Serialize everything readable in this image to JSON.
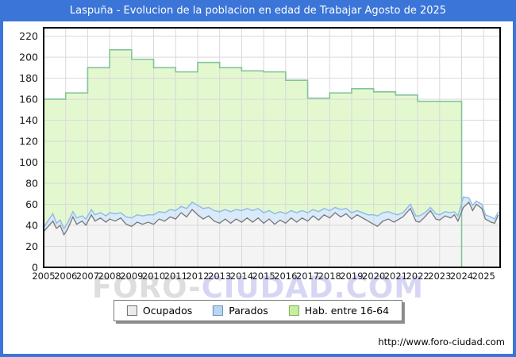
{
  "title_bar": {
    "title": "Laspuña - Evolucion de la poblacion en edad de Trabajar Agosto de 2025",
    "bg_color": "#3a75d7"
  },
  "watermark": {
    "part1": "FORO-",
    "part2": "CIUDAD.COM"
  },
  "footer": {
    "url": "http://www.foro-ciudad.com"
  },
  "legend": {
    "items": [
      {
        "label": "Ocupados",
        "fill": "#ececec",
        "border": "#6e6e6e"
      },
      {
        "label": "Parados",
        "fill": "#b9d7f2",
        "border": "#6d8fb4"
      },
      {
        "label": "Hab. entre 16-64",
        "fill": "#c6f19c",
        "border": "#82a868"
      }
    ]
  },
  "chart_data": {
    "type": "area",
    "title": "Laspuña - Evolucion de la poblacion en edad de Trabajar Agosto de 2025",
    "xlabel": "",
    "ylabel": "",
    "xlim": [
      2005,
      2025.75
    ],
    "ylim": [
      0,
      228
    ],
    "y_ticks": [
      0,
      20,
      40,
      60,
      80,
      100,
      120,
      140,
      160,
      180,
      200,
      220
    ],
    "x_ticks": [
      2005,
      2006,
      2007,
      2008,
      2009,
      2010,
      2011,
      2012,
      2013,
      2014,
      2015,
      2016,
      2017,
      2018,
      2019,
      2020,
      2021,
      2022,
      2023,
      2024,
      2025
    ],
    "grid": true,
    "legend_position": "bottom",
    "colors": {
      "grid": "#d9d9d9",
      "plot_border": "#000000",
      "hab_line": "#82c49a",
      "hab_fill": "#e4f8cf",
      "ocupados_line": "#777777",
      "ocupados_fill": "#f4f4f4",
      "parados_line": "#93bce8",
      "parados_fill": "#d9eafa"
    },
    "series": [
      {
        "name": "Hab. entre 16-64",
        "style": "annual-step",
        "years": [
          2005,
          2006,
          2007,
          2008,
          2009,
          2010,
          2011,
          2012,
          2013,
          2014,
          2015,
          2016,
          2017,
          2018,
          2019,
          2020,
          2021,
          2022,
          2023
        ],
        "values": [
          160,
          166,
          190,
          207,
          198,
          190,
          186,
          195,
          190,
          187,
          186,
          178,
          161,
          166,
          170,
          167,
          164,
          158,
          158
        ],
        "ends_at": 2024.0
      },
      {
        "name": "Ocupados",
        "style": "monthly",
        "stacked_on": null,
        "x": [
          2005.0,
          2005.25,
          2005.42,
          2005.58,
          2005.75,
          2005.92,
          2006.08,
          2006.33,
          2006.5,
          2006.75,
          2006.92,
          2007.17,
          2007.33,
          2007.58,
          2007.83,
          2008.0,
          2008.25,
          2008.5,
          2008.75,
          2009.0,
          2009.25,
          2009.5,
          2009.75,
          2010.0,
          2010.25,
          2010.5,
          2010.75,
          2011.0,
          2011.25,
          2011.5,
          2011.75,
          2012.0,
          2012.25,
          2012.5,
          2012.75,
          2013.0,
          2013.25,
          2013.5,
          2013.75,
          2014.0,
          2014.25,
          2014.5,
          2014.75,
          2015.0,
          2015.25,
          2015.5,
          2015.75,
          2016.0,
          2016.25,
          2016.5,
          2016.75,
          2017.0,
          2017.25,
          2017.5,
          2017.75,
          2018.0,
          2018.25,
          2018.5,
          2018.75,
          2019.0,
          2019.25,
          2019.5,
          2019.75,
          2020.0,
          2020.17,
          2020.42,
          2020.67,
          2020.92,
          2021.08,
          2021.33,
          2021.67,
          2021.92,
          2022.08,
          2022.33,
          2022.58,
          2022.83,
          2023.0,
          2023.25,
          2023.5,
          2023.67,
          2023.83,
          2024.08,
          2024.33,
          2024.5,
          2024.67,
          2024.92,
          2025.08,
          2025.33,
          2025.5,
          2025.67
        ],
        "values": [
          34,
          40,
          44,
          37,
          40,
          31,
          36,
          48,
          41,
          44,
          40,
          50,
          44,
          47,
          43,
          46,
          44,
          47,
          41,
          39,
          43,
          41,
          43,
          41,
          46,
          44,
          48,
          46,
          52,
          48,
          55,
          50,
          46,
          49,
          44,
          42,
          46,
          42,
          46,
          43,
          47,
          43,
          47,
          42,
          46,
          41,
          45,
          42,
          47,
          43,
          47,
          44,
          49,
          45,
          50,
          47,
          52,
          48,
          51,
          46,
          50,
          47,
          44,
          41,
          39,
          44,
          46,
          43,
          45,
          48,
          56,
          44,
          43,
          48,
          54,
          46,
          45,
          49,
          47,
          50,
          44,
          57,
          62,
          54,
          60,
          56,
          46,
          43,
          42,
          50
        ]
      },
      {
        "name": "Parados",
        "style": "monthly",
        "stacked_on": "Ocupados",
        "x": [
          2005.0,
          2005.25,
          2005.42,
          2005.58,
          2005.75,
          2005.92,
          2006.08,
          2006.33,
          2006.5,
          2006.75,
          2006.92,
          2007.17,
          2007.33,
          2007.58,
          2007.83,
          2008.0,
          2008.25,
          2008.5,
          2008.75,
          2009.0,
          2009.25,
          2009.5,
          2009.75,
          2010.0,
          2010.25,
          2010.5,
          2010.75,
          2011.0,
          2011.25,
          2011.5,
          2011.75,
          2012.0,
          2012.25,
          2012.5,
          2012.75,
          2013.0,
          2013.25,
          2013.5,
          2013.75,
          2014.0,
          2014.25,
          2014.5,
          2014.75,
          2015.0,
          2015.25,
          2015.5,
          2015.75,
          2016.0,
          2016.25,
          2016.5,
          2016.75,
          2017.0,
          2017.25,
          2017.5,
          2017.75,
          2018.0,
          2018.25,
          2018.5,
          2018.75,
          2019.0,
          2019.25,
          2019.5,
          2019.75,
          2020.0,
          2020.17,
          2020.42,
          2020.67,
          2020.92,
          2021.08,
          2021.33,
          2021.67,
          2021.92,
          2022.08,
          2022.33,
          2022.58,
          2022.83,
          2023.0,
          2023.25,
          2023.5,
          2023.67,
          2023.83,
          2024.08,
          2024.33,
          2024.5,
          2024.67,
          2024.92,
          2025.08,
          2025.33,
          2025.5,
          2025.67
        ],
        "values": [
          4,
          6,
          7,
          5,
          5,
          6,
          6,
          5,
          6,
          5,
          6,
          5,
          6,
          5,
          6,
          6,
          7,
          5,
          7,
          8,
          7,
          8,
          7,
          9,
          7,
          8,
          7,
          8,
          6,
          8,
          7,
          9,
          10,
          8,
          10,
          11,
          9,
          11,
          9,
          11,
          9,
          11,
          9,
          10,
          8,
          10,
          8,
          9,
          7,
          9,
          7,
          8,
          6,
          8,
          6,
          7,
          5,
          7,
          5,
          6,
          4,
          5,
          6,
          9,
          10,
          8,
          7,
          8,
          5,
          4,
          4,
          5,
          6,
          4,
          3,
          5,
          5,
          4,
          5,
          3,
          5,
          10,
          4,
          5,
          3,
          4,
          4,
          5,
          4,
          3
        ]
      }
    ]
  }
}
